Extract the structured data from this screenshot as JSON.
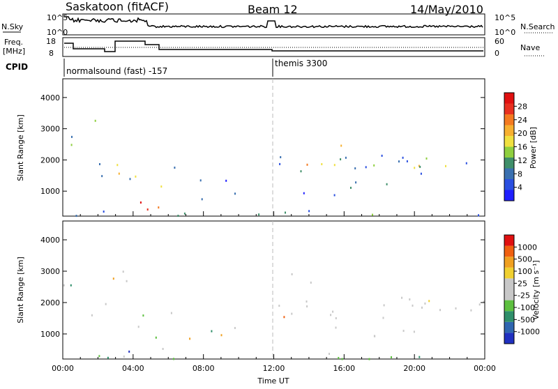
{
  "header": {
    "station": "Saskatoon (fitACF)",
    "beam": "Beam 12",
    "date": "14/May/2010"
  },
  "panels": {
    "noise": {
      "left_label": "N.Sky",
      "right_label": "N.Search",
      "left_ticks": [
        "10^5",
        "10^0"
      ],
      "right_ticks": [
        "10^5",
        "10^0"
      ]
    },
    "freq": {
      "left_label_top": "Freq.",
      "left_label_bottom": "[MHz]",
      "right_label": "Nave",
      "left_ticks": [
        "18",
        "8"
      ],
      "right_ticks": [
        "60",
        "0"
      ]
    },
    "cpid": {
      "label": "CPID",
      "segments": [
        {
          "name": "normalsound (fast) -157",
          "start_hour": 0
        },
        {
          "name": "themis 3300",
          "start_hour": 12
        }
      ]
    }
  },
  "chart_data": [
    {
      "type": "heatmap",
      "name": "power",
      "ylabel": "Slant Range [km]",
      "xlabel": "",
      "x_ticks": [
        "00:00",
        "04:00",
        "08:00",
        "12:00",
        "16:00",
        "20:00",
        "00:00"
      ],
      "y_ticks": [
        "1000",
        "2000",
        "3000",
        "4000"
      ],
      "ylim": [
        200,
        4600
      ],
      "xlim": [
        0,
        24
      ],
      "colorbar": {
        "label": "Power [dB]",
        "ticks": [
          "4",
          "8",
          "12",
          "16",
          "20",
          "24",
          "28"
        ],
        "colors": [
          "#1f1fff",
          "#2a4fe0",
          "#3a70b0",
          "#3f8f6a",
          "#8fcf3f",
          "#f0e040",
          "#f7b030",
          "#f47a20",
          "#e83020",
          "#e01010"
        ]
      }
    },
    {
      "type": "heatmap",
      "name": "velocity",
      "ylabel": "Slant Range [km]",
      "xlabel": "Time UT",
      "x_ticks": [
        "00:00",
        "04:00",
        "08:00",
        "12:00",
        "16:00",
        "20:00",
        "00:00"
      ],
      "y_ticks": [
        "1000",
        "2000",
        "3000",
        "4000"
      ],
      "ylim": [
        200,
        4600
      ],
      "xlim": [
        0,
        24
      ],
      "colorbar": {
        "label": "Velocity [m s⁻¹]",
        "ticks": [
          "1000",
          "500",
          "100",
          "25",
          "-25",
          "-100",
          "-500",
          "-1000"
        ],
        "colors": [
          "#2030c0",
          "#2f66b0",
          "#2f8f6a",
          "#5ec040",
          "#c8c8c8",
          "#c8c8c8",
          "#f0d030",
          "#f0a020",
          "#f06010",
          "#e01010"
        ]
      }
    }
  ]
}
